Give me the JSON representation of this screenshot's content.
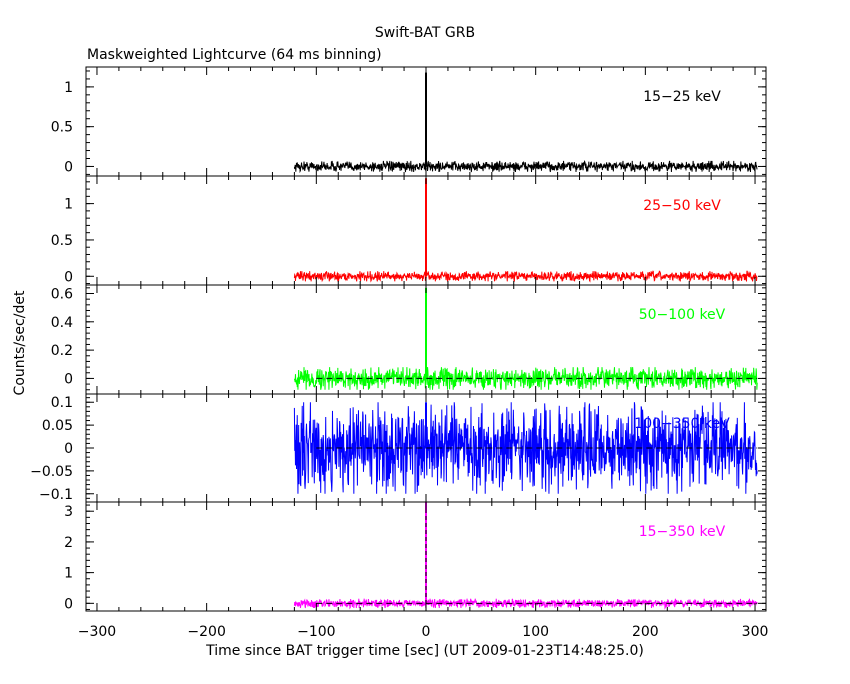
{
  "chart_data": {
    "type": "line",
    "title": "Swift-BAT GRB",
    "subtitle": "Maskweighted Lightcurve (64 ms binning)",
    "xlabel": "Time since BAT trigger time [sec] (UT 2009-01-23T14:48:25.0)",
    "ylabel": "Counts/sec/det",
    "xlim": [
      -310,
      310
    ],
    "xticks": [
      -300,
      -200,
      -100,
      0,
      100,
      200,
      300
    ],
    "data_range": [
      -120,
      302
    ],
    "trigger_time": 0,
    "grid": false,
    "panels": [
      {
        "name": "15-25 keV",
        "label": "15−25 keV",
        "color": "#000000",
        "ylim": [
          -0.12,
          1.25
        ],
        "yticks": [
          0,
          0.5,
          1
        ],
        "ytick_labels": [
          "0",
          "0.5",
          "1"
        ],
        "noise_amplitude": 0.07,
        "peak": 1.18,
        "zero_line": false
      },
      {
        "name": "25-50 keV",
        "label": "25−50 keV",
        "color": "#ff0000",
        "ylim": [
          -0.12,
          1.38
        ],
        "yticks": [
          0,
          0.5,
          1
        ],
        "ytick_labels": [
          "0",
          "0.5",
          "1"
        ],
        "noise_amplitude": 0.07,
        "peak": 1.35,
        "zero_line": false
      },
      {
        "name": "50-100 keV",
        "label": "50−100 keV",
        "color": "#00ff00",
        "ylim": [
          -0.11,
          0.66
        ],
        "yticks": [
          0,
          0.2,
          0.4,
          0.6
        ],
        "ytick_labels": [
          "0",
          "0.2",
          "0.4",
          "0.6"
        ],
        "noise_amplitude": 0.08,
        "peak": 0.64,
        "zero_line": true
      },
      {
        "name": "100-350 keV",
        "label": "100−350 keV",
        "color": "#0000ff",
        "ylim": [
          -0.118,
          0.118
        ],
        "yticks": [
          -0.1,
          -0.05,
          0,
          0.05,
          0.1
        ],
        "ytick_labels": [
          "−0.1",
          "−0.05",
          "0",
          "0.05",
          "0.1"
        ],
        "noise_amplitude": 0.1,
        "peak": 0.1,
        "zero_line": true
      },
      {
        "name": "15-350 keV",
        "label": "15−350 keV",
        "color": "#ff00ff",
        "ylim": [
          -0.25,
          3.3
        ],
        "yticks": [
          0,
          1,
          2,
          3
        ],
        "ytick_labels": [
          "0",
          "1",
          "2",
          "3"
        ],
        "noise_amplitude": 0.15,
        "peak": 3.3,
        "zero_line": true
      }
    ]
  }
}
